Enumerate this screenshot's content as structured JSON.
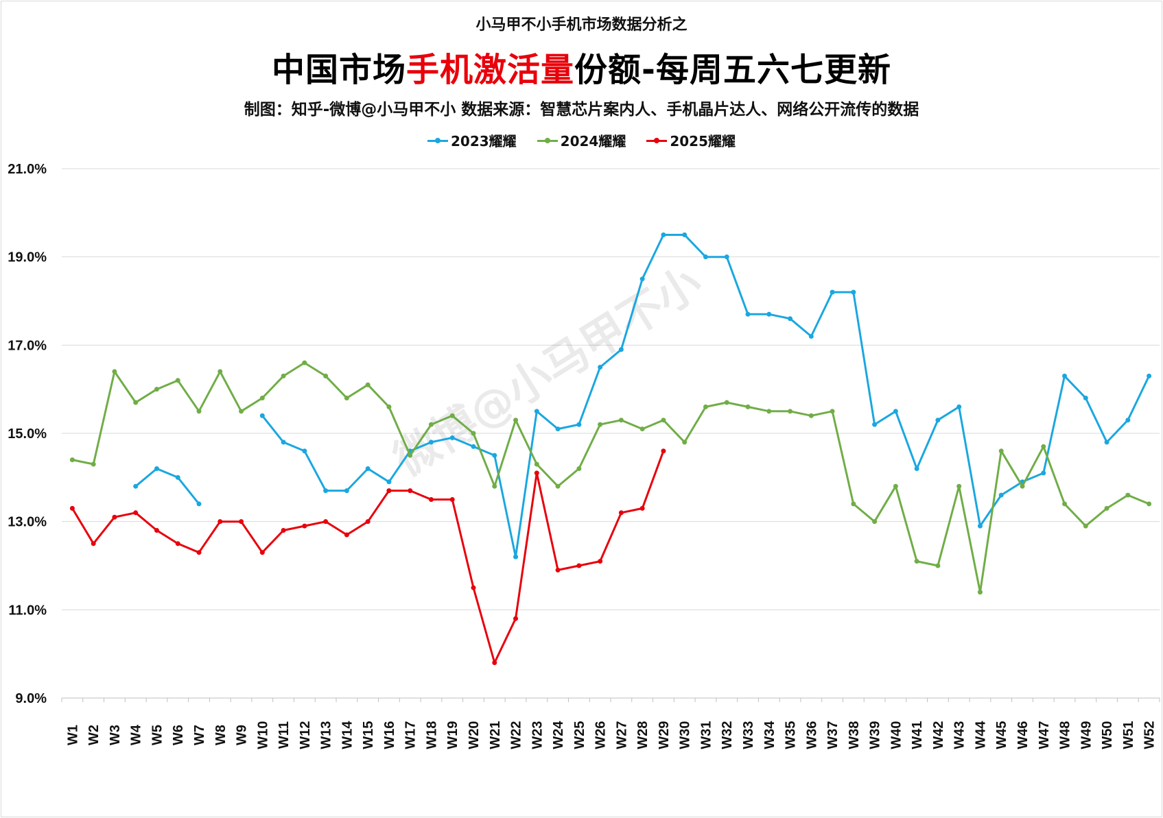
{
  "header": {
    "pre_title": "小马甲不小手机市场数据分析之",
    "title_part1": "中国市场",
    "title_highlight": "手机激活量",
    "title_part2": "份额-每周五六七更新",
    "credit": "制图：知乎-微博@小马甲不小    数据来源：智慧芯片案内人、手机晶片达人、网络公开流传的数据"
  },
  "watermark": "微博@小马甲不小",
  "colors": {
    "highlight": "#e8000b",
    "grid": "#d9d9d9"
  },
  "chart_data": {
    "type": "line",
    "title": "中国市场手机激活量份额-每周五六七更新",
    "xlabel": "",
    "ylabel": "",
    "ylim": [
      9.0,
      21.0
    ],
    "yticks": [
      9.0,
      11.0,
      13.0,
      15.0,
      17.0,
      19.0,
      21.0
    ],
    "ytick_labels": [
      "9.0%",
      "11.0%",
      "13.0%",
      "15.0%",
      "17.0%",
      "19.0%",
      "21.0%"
    ],
    "grid": true,
    "legend_position": "top-center",
    "categories": [
      "W1",
      "W2",
      "W3",
      "W4",
      "W5",
      "W6",
      "W7",
      "W8",
      "W9",
      "W10",
      "W11",
      "W12",
      "W13",
      "W14",
      "W15",
      "W16",
      "W17",
      "W18",
      "W19",
      "W20",
      "W21",
      "W22",
      "W23",
      "W24",
      "W25",
      "W26",
      "W27",
      "W28",
      "W29",
      "W30",
      "W31",
      "W32",
      "W33",
      "W34",
      "W35",
      "W36",
      "W37",
      "W38",
      "W39",
      "W40",
      "W41",
      "W42",
      "W43",
      "W44",
      "W45",
      "W46",
      "W47",
      "W48",
      "W49",
      "W50",
      "W51",
      "W52"
    ],
    "series": [
      {
        "name": "2023耀耀",
        "color": "#1aa7e0",
        "values": [
          null,
          null,
          null,
          13.8,
          14.2,
          14.0,
          13.4,
          null,
          null,
          15.4,
          14.8,
          14.6,
          13.7,
          13.7,
          14.2,
          13.9,
          14.6,
          14.8,
          14.9,
          14.7,
          14.5,
          12.2,
          15.5,
          15.1,
          15.2,
          16.5,
          16.9,
          18.5,
          19.5,
          19.5,
          19.0,
          19.0,
          17.7,
          17.7,
          17.6,
          17.2,
          18.2,
          18.2,
          15.2,
          15.5,
          14.2,
          15.3,
          15.6,
          12.9,
          13.6,
          13.9,
          14.1,
          16.3,
          15.8,
          14.8,
          15.3,
          16.3
        ]
      },
      {
        "name": "2024耀耀",
        "color": "#70ad47",
        "values": [
          14.4,
          14.3,
          16.4,
          15.7,
          16.0,
          16.2,
          15.5,
          16.4,
          15.5,
          15.8,
          16.3,
          16.6,
          16.3,
          15.8,
          16.1,
          15.6,
          14.5,
          15.2,
          15.4,
          15.0,
          13.8,
          15.3,
          14.3,
          13.8,
          14.2,
          15.2,
          15.3,
          15.1,
          15.3,
          14.8,
          15.6,
          15.7,
          15.6,
          15.5,
          15.5,
          15.4,
          15.5,
          13.4,
          13.0,
          13.8,
          12.1,
          12.0,
          13.8,
          11.4,
          14.6,
          13.8,
          14.7,
          13.4,
          12.9,
          13.3,
          13.6,
          13.4
        ]
      },
      {
        "name": "2025耀耀",
        "color": "#e8000b",
        "values": [
          13.3,
          12.5,
          13.1,
          13.2,
          12.8,
          12.5,
          12.3,
          13.0,
          13.0,
          12.3,
          12.8,
          12.9,
          13.0,
          12.7,
          13.0,
          13.7,
          13.7,
          13.5,
          13.5,
          11.5,
          9.8,
          10.8,
          14.1,
          11.9,
          12.0,
          12.1,
          13.2,
          13.3,
          14.6,
          null,
          null,
          null,
          null,
          null,
          null,
          null,
          null,
          null,
          null,
          null,
          null,
          null,
          null,
          null,
          null,
          null,
          null,
          null,
          null,
          null,
          null,
          null
        ]
      }
    ]
  }
}
